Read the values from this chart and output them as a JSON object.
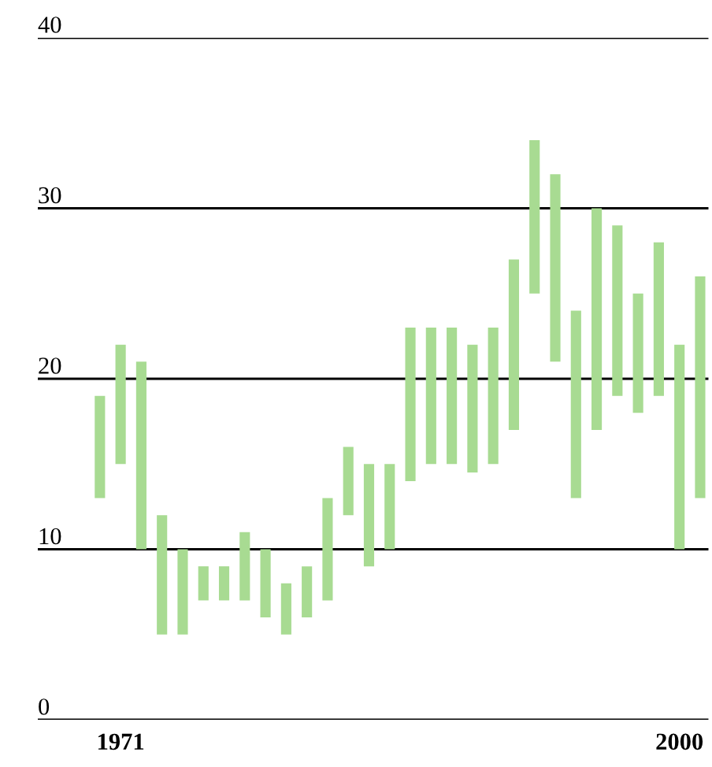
{
  "chart_data": {
    "type": "bar",
    "categories": [
      null,
      "1971",
      null,
      null,
      null,
      null,
      null,
      null,
      null,
      null,
      null,
      null,
      null,
      null,
      null,
      null,
      null,
      null,
      null,
      null,
      null,
      null,
      null,
      null,
      null,
      null,
      null,
      null,
      "2000",
      null
    ],
    "series": [
      {
        "color": "#a8db92",
        "base": [
          13,
          15,
          10,
          5,
          5,
          7,
          7,
          7,
          6,
          5,
          6,
          7,
          12,
          9,
          10,
          14,
          15,
          15,
          14.5,
          15,
          17,
          25,
          21,
          13,
          17,
          19,
          18,
          19,
          10,
          13
        ],
        "values": [
          6,
          7,
          11,
          7,
          5,
          2,
          2,
          4,
          4,
          3,
          3,
          6,
          4,
          6,
          5,
          9,
          8,
          8,
          7.5,
          8,
          10,
          9,
          11,
          11,
          13,
          10,
          7,
          9,
          12,
          13
        ]
      }
    ],
    "ylim": [
      0,
      40
    ],
    "yticks": [
      0,
      10,
      20,
      30,
      40
    ],
    "grid": "y",
    "legend": false
  }
}
